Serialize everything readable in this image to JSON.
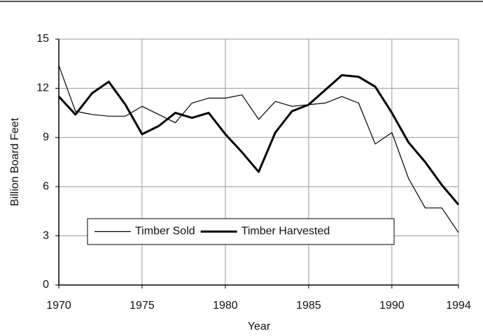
{
  "chart_data": {
    "type": "line",
    "x": [
      1970,
      1971,
      1972,
      1973,
      1974,
      1975,
      1976,
      1977,
      1978,
      1979,
      1980,
      1981,
      1982,
      1983,
      1984,
      1985,
      1986,
      1987,
      1988,
      1989,
      1990,
      1991,
      1992,
      1993,
      1994
    ],
    "series": [
      {
        "name": "Timber Sold",
        "color": "#000000",
        "line_width": 1.2,
        "values": [
          13.4,
          10.6,
          10.4,
          10.3,
          10.3,
          10.9,
          10.4,
          9.9,
          11.1,
          11.4,
          11.4,
          11.6,
          10.1,
          11.2,
          10.9,
          11.0,
          11.1,
          11.5,
          11.1,
          8.6,
          9.3,
          6.5,
          4.7,
          4.7,
          3.2
        ]
      },
      {
        "name": "Timber Harvested",
        "color": "#000000",
        "line_width": 3,
        "values": [
          11.5,
          10.4,
          11.7,
          12.4,
          11.0,
          9.2,
          9.7,
          10.5,
          10.2,
          10.5,
          9.2,
          8.1,
          6.9,
          9.3,
          10.6,
          11.0,
          11.9,
          12.8,
          12.7,
          12.1,
          10.5,
          8.7,
          7.5,
          6.1,
          4.9
        ]
      }
    ],
    "xlabel": "Year",
    "ylabel": "Billion Board Feet",
    "xlim": [
      1970,
      1994
    ],
    "xticks": [
      1970,
      1975,
      1980,
      1985,
      1990,
      1994
    ],
    "ylim": [
      0,
      15
    ],
    "yticks": [
      0,
      3,
      6,
      9,
      12,
      15
    ],
    "grid": true,
    "legend": "lower center"
  }
}
